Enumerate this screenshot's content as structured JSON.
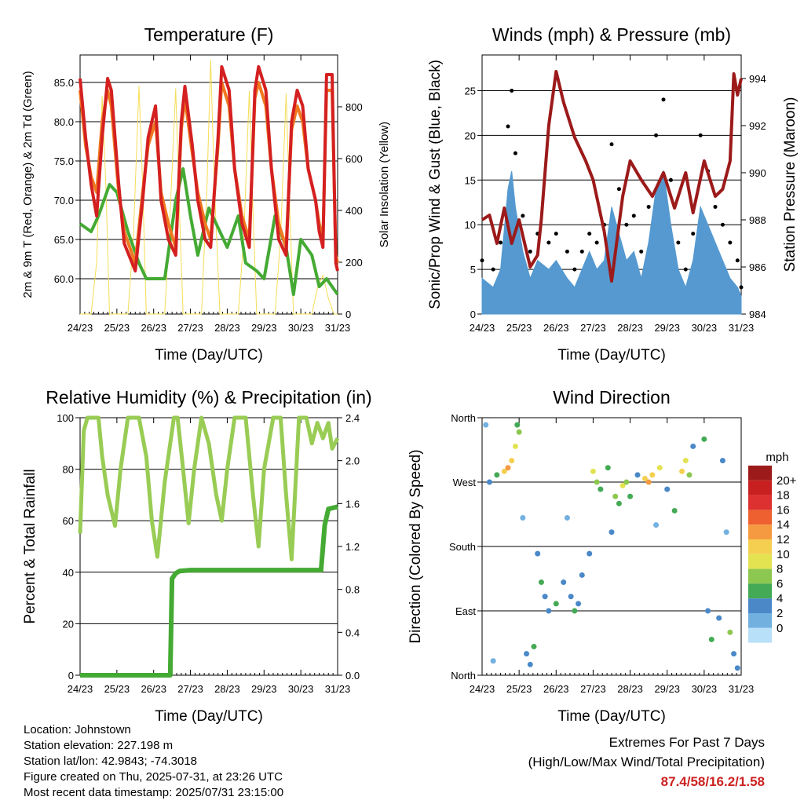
{
  "chart_data": [
    {
      "type": "line",
      "title": "Temperature (F)",
      "xlabel": "Time (Day/UTC)",
      "ylabel": "2m & 9m T (Red, Orange) & 2m Td (Green)",
      "ylabel_right": "Solar Insolation (Yellow)",
      "x_ticks": [
        "24/23",
        "25/23",
        "26/23",
        "27/23",
        "28/23",
        "29/23",
        "30/23",
        "31/23"
      ],
      "ylim": [
        55.5,
        88.5
      ],
      "yticks": [
        "60.0",
        "65.0",
        "70.0",
        "75.0",
        "80.0",
        "85.0"
      ],
      "ylim_right": [
        0,
        1000
      ],
      "yticks_right": [
        "0",
        "200",
        "400",
        "600",
        "800"
      ],
      "series": [
        {
          "color": "#d42020",
          "x": [
            0,
            0.15,
            0.3,
            0.45,
            0.6,
            0.75,
            0.85,
            1.05,
            1.2,
            1.5,
            1.7,
            1.85,
            2.05,
            2.2,
            2.4,
            2.6,
            2.75,
            2.85,
            3.05,
            3.2,
            3.4,
            3.55,
            3.75,
            3.85,
            4.05,
            4.2,
            4.4,
            4.6,
            4.75,
            4.85,
            5.05,
            5.2,
            5.4,
            5.6,
            5.75,
            5.9,
            6.05,
            6.2,
            6.4,
            6.5,
            6.6,
            6.7,
            6.85,
            6.95,
            7.0
          ],
          "y": [
            85.5,
            78,
            72,
            68,
            78,
            85.5,
            84,
            72,
            64.5,
            61,
            70,
            78,
            82,
            70,
            65,
            63,
            80,
            84.5,
            77,
            70,
            65,
            64,
            78,
            87,
            84,
            74,
            67,
            64,
            84,
            87,
            84,
            74,
            65,
            63,
            80,
            84,
            82,
            74,
            70,
            66,
            64,
            86,
            86,
            62,
            61
          ]
        },
        {
          "color": "#f07820",
          "x": [
            0,
            0.15,
            0.3,
            0.45,
            0.6,
            0.75,
            0.85,
            1.05,
            1.2,
            1.5,
            1.7,
            1.85,
            2.05,
            2.2,
            2.4,
            2.6,
            2.75,
            2.85,
            3.05,
            3.2,
            3.4,
            3.55,
            3.75,
            3.85,
            4.05,
            4.2,
            4.4,
            4.6,
            4.75,
            4.85,
            5.05,
            5.2,
            5.4,
            5.6,
            5.75,
            5.9,
            6.05,
            6.2,
            6.4,
            6.5,
            6.6,
            6.7,
            6.85,
            6.95,
            7.0
          ],
          "y": [
            84,
            77,
            73,
            71,
            80,
            84,
            82,
            71,
            66,
            62,
            71,
            77,
            80,
            71,
            67,
            64,
            79,
            83,
            76,
            71,
            67,
            65,
            77,
            85,
            82,
            74,
            68,
            65,
            83,
            85,
            82,
            74,
            67,
            64,
            79,
            82,
            80,
            74,
            70,
            67,
            65,
            84,
            84,
            63,
            62
          ]
        },
        {
          "color": "#44aa33",
          "x": [
            0,
            0.3,
            0.5,
            0.8,
            1.0,
            1.3,
            1.6,
            1.8,
            2.0,
            2.3,
            2.6,
            2.8,
            3.0,
            3.2,
            3.5,
            3.8,
            4.0,
            4.3,
            4.5,
            4.8,
            5.0,
            5.3,
            5.6,
            5.8,
            6.0,
            6.3,
            6.5,
            6.7,
            7.0
          ],
          "y": [
            67,
            66,
            68,
            72,
            71,
            66,
            62,
            60,
            60,
            60,
            70,
            74,
            68,
            63,
            69,
            66,
            64,
            68,
            62,
            61,
            60,
            68,
            64,
            58,
            65,
            63,
            59,
            60,
            58
          ]
        },
        {
          "color": "#f5dd55",
          "axis": "right",
          "x": [
            0,
            0.3,
            0.45,
            0.6,
            0.7,
            0.8,
            1.3,
            1.45,
            1.6,
            1.7,
            1.8,
            2.3,
            2.45,
            2.6,
            2.7,
            2.8,
            3.3,
            3.45,
            3.55,
            3.65,
            3.8,
            4.3,
            4.45,
            4.6,
            4.7,
            4.8,
            5.3,
            5.45,
            5.6,
            5.7,
            5.8,
            6.3,
            6.45,
            6.6,
            6.75,
            6.9,
            7.0
          ],
          "y": [
            0,
            0,
            200,
            840,
            500,
            0,
            0,
            300,
            880,
            500,
            0,
            0,
            400,
            870,
            400,
            0,
            0,
            500,
            980,
            500,
            0,
            0,
            300,
            860,
            400,
            0,
            0,
            300,
            850,
            400,
            0,
            0,
            100,
            150,
            60,
            0,
            0
          ]
        }
      ]
    },
    {
      "type": "line",
      "title": "Winds (mph) & Pressure (mb)",
      "xlabel": "Time (Day/UTC)",
      "ylabel": "Sonic/Prop Wind & Gust (Blue, Black)",
      "ylabel_right": "Station Pressure (Maroon)",
      "x_ticks": [
        "24/23",
        "25/23",
        "26/23",
        "27/23",
        "28/23",
        "29/23",
        "30/23",
        "31/23"
      ],
      "ylim": [
        0,
        29
      ],
      "yticks": [
        "0",
        "5",
        "10",
        "15",
        "20",
        "25"
      ],
      "ylim_right": [
        984,
        995
      ],
      "yticks_right": [
        "984",
        "986",
        "988",
        "990",
        "992",
        "994"
      ],
      "series": [
        {
          "color": "#5599d0",
          "x": [
            0,
            0.3,
            0.5,
            0.7,
            0.8,
            0.9,
            1.1,
            1.3,
            1.5,
            1.8,
            2.0,
            2.3,
            2.5,
            2.7,
            2.9,
            3.1,
            3.3,
            3.5,
            3.7,
            3.9,
            4.1,
            4.3,
            4.5,
            4.7,
            4.9,
            5.1,
            5.3,
            5.5,
            5.7,
            5.9,
            6.1,
            6.3,
            6.5,
            6.7,
            6.9,
            7.0
          ],
          "y": [
            4,
            3,
            5,
            14,
            16,
            12,
            7,
            4,
            6,
            5,
            6,
            4,
            3,
            5,
            7,
            5,
            6,
            12,
            9,
            6,
            7,
            4,
            8,
            14,
            16,
            10,
            5,
            3,
            6,
            12,
            10,
            8,
            6,
            4,
            3,
            2
          ]
        },
        {
          "color": "#000000",
          "x": [
            0,
            0.3,
            0.5,
            0.7,
            0.8,
            0.9,
            1.1,
            1.3,
            1.5,
            1.8,
            2.0,
            2.3,
            2.5,
            2.7,
            2.9,
            3.1,
            3.3,
            3.5,
            3.7,
            3.9,
            4.1,
            4.3,
            4.5,
            4.7,
            4.9,
            5.1,
            5.3,
            5.5,
            5.7,
            5.9,
            6.1,
            6.3,
            6.5,
            6.7,
            6.9,
            7.0
          ],
          "y": [
            6,
            5,
            8,
            21,
            25,
            18,
            11,
            7,
            9,
            8,
            9,
            7,
            5,
            7,
            9,
            8,
            10,
            19,
            14,
            10,
            11,
            7,
            12,
            20,
            24,
            15,
            8,
            5,
            9,
            20,
            16,
            12,
            10,
            8,
            6,
            3
          ]
        },
        {
          "color": "#9c1a1a",
          "axis": "right",
          "x": [
            0,
            0.2,
            0.4,
            0.6,
            0.8,
            1.0,
            1.3,
            1.5,
            1.6,
            1.8,
            2.0,
            2.2,
            2.5,
            2.8,
            3.0,
            3.3,
            3.5,
            3.8,
            4.0,
            4.3,
            4.6,
            4.9,
            5.2,
            5.5,
            5.7,
            6.0,
            6.3,
            6.5,
            6.7,
            6.8,
            6.9,
            7.0
          ],
          "y": [
            988,
            988.2,
            987,
            988.5,
            987,
            988,
            986,
            986.5,
            988,
            992,
            994.3,
            993,
            991.5,
            990.5,
            989.7,
            987.5,
            985.4,
            989,
            990.5,
            989.7,
            989,
            990,
            988.5,
            990,
            988.3,
            990.5,
            989,
            989.3,
            990.5,
            994.2,
            993.3,
            994
          ]
        }
      ]
    },
    {
      "type": "line",
      "title": "Relative Humidity (%) & Precipitation (in)",
      "xlabel": "Time (Day/UTC)",
      "ylabel": "Percent & Total Rainfall",
      "x_ticks": [
        "24/23",
        "25/23",
        "26/23",
        "27/23",
        "28/23",
        "29/23",
        "30/23",
        "31/23"
      ],
      "ylim": [
        0,
        100
      ],
      "yticks": [
        "0",
        "20",
        "40",
        "60",
        "80",
        "100"
      ],
      "ylim_right": [
        0,
        2.4
      ],
      "yticks_right": [
        "0.0",
        "0.4",
        "0.8",
        "1.2",
        "1.6",
        "2.0",
        "2.4"
      ],
      "series": [
        {
          "color": "#99cc55",
          "x": [
            0,
            0.1,
            0.2,
            0.5,
            0.6,
            0.75,
            0.95,
            1.1,
            1.3,
            1.6,
            1.8,
            1.95,
            2.1,
            2.3,
            2.55,
            2.65,
            2.8,
            2.95,
            3.1,
            3.3,
            3.5,
            3.7,
            3.85,
            4.0,
            4.2,
            4.5,
            4.7,
            4.85,
            5.0,
            5.25,
            5.45,
            5.6,
            5.75,
            5.95,
            6.15,
            6.3,
            6.45,
            6.6,
            6.75,
            6.85,
            7.0
          ],
          "y": [
            55,
            95,
            100,
            100,
            85,
            70,
            58,
            80,
            100,
            100,
            85,
            60,
            46,
            75,
            100,
            100,
            80,
            59,
            80,
            100,
            90,
            70,
            60,
            80,
            100,
            100,
            70,
            50,
            80,
            100,
            100,
            70,
            45,
            100,
            100,
            90,
            98,
            92,
            98,
            88,
            92
          ]
        },
        {
          "color": "#44aa33",
          "axis": "right",
          "x": [
            0,
            1.0,
            2.2,
            2.45,
            2.5,
            2.6,
            2.7,
            3.0,
            4.0,
            5.0,
            6.0,
            6.55,
            6.65,
            6.75,
            7.0
          ],
          "y": [
            0,
            0,
            0,
            0,
            0.9,
            0.95,
            0.97,
            0.98,
            0.98,
            0.98,
            0.98,
            0.98,
            1.4,
            1.55,
            1.57
          ]
        }
      ]
    },
    {
      "type": "scatter",
      "title": "Wind Direction",
      "xlabel": "Time (Day/UTC)",
      "ylabel": "Direction (Colored By Speed)",
      "x_ticks": [
        "24/23",
        "25/23",
        "26/23",
        "27/23",
        "28/23",
        "29/23",
        "30/23",
        "31/23"
      ],
      "y_ticks": [
        "North",
        "East",
        "South",
        "West",
        "North"
      ],
      "ylim": [
        0,
        360
      ],
      "colorbar_title": "mph",
      "colorbar_labels": [
        "20+",
        "18",
        "16",
        "14",
        "12",
        "10",
        "8",
        "6",
        "4",
        "2",
        "0"
      ],
      "colorbar_colors": [
        "#9c1a1a",
        "#c82020",
        "#dd3030",
        "#ee6030",
        "#f59a40",
        "#f5d050",
        "#e3e352",
        "#8cc850",
        "#44aa55",
        "#4a88c8",
        "#72b0e0",
        "#b8e0f8"
      ],
      "points": [
        [
          0.2,
          270,
          4
        ],
        [
          0.4,
          280,
          6
        ],
        [
          0.6,
          285,
          12
        ],
        [
          0.7,
          290,
          15
        ],
        [
          0.8,
          300,
          12
        ],
        [
          0.9,
          320,
          10
        ],
        [
          1.0,
          340,
          8
        ],
        [
          0.95,
          350,
          6
        ],
        [
          0.1,
          350,
          2
        ],
        [
          0.3,
          20,
          3
        ],
        [
          1.2,
          30,
          5
        ],
        [
          1.3,
          15,
          4
        ],
        [
          1.4,
          40,
          6
        ],
        [
          1.5,
          170,
          5
        ],
        [
          1.6,
          130,
          6
        ],
        [
          1.7,
          110,
          5
        ],
        [
          1.8,
          90,
          4
        ],
        [
          2.0,
          100,
          6
        ],
        [
          2.2,
          130,
          5
        ],
        [
          2.4,
          110,
          4
        ],
        [
          2.5,
          90,
          6
        ],
        [
          2.6,
          100,
          5
        ],
        [
          2.7,
          140,
          4
        ],
        [
          2.9,
          170,
          5
        ],
        [
          3.0,
          285,
          10
        ],
        [
          3.1,
          270,
          8
        ],
        [
          3.2,
          260,
          6
        ],
        [
          3.4,
          290,
          6
        ],
        [
          3.6,
          250,
          8
        ],
        [
          3.7,
          240,
          6
        ],
        [
          3.8,
          265,
          10
        ],
        [
          3.9,
          270,
          8
        ],
        [
          4.0,
          250,
          6
        ],
        [
          4.2,
          280,
          4
        ],
        [
          4.4,
          275,
          12
        ],
        [
          4.5,
          270,
          14
        ],
        [
          4.6,
          280,
          12
        ],
        [
          4.8,
          290,
          10
        ],
        [
          5.0,
          260,
          4
        ],
        [
          5.2,
          230,
          6
        ],
        [
          5.4,
          285,
          12
        ],
        [
          5.5,
          300,
          10
        ],
        [
          5.6,
          280,
          8
        ],
        [
          5.7,
          320,
          4
        ],
        [
          6.0,
          330,
          6
        ],
        [
          6.1,
          90,
          4
        ],
        [
          6.2,
          50,
          6
        ],
        [
          6.4,
          80,
          5
        ],
        [
          6.5,
          300,
          4
        ],
        [
          6.7,
          60,
          8
        ],
        [
          6.8,
          30,
          5
        ],
        [
          6.9,
          10,
          4
        ],
        [
          6.6,
          200,
          3
        ],
        [
          4.7,
          210,
          2
        ],
        [
          3.5,
          200,
          4
        ],
        [
          2.3,
          220,
          3
        ],
        [
          1.1,
          220,
          2
        ]
      ]
    }
  ],
  "footer": {
    "location": "Location: Johnstown",
    "elevation": "Station elevation: 227.198 m",
    "latlon": "Station lat/lon: 42.9843; -74.3018",
    "created": "Figure created on Thu, 2025-07-31, at 23:26 UTC",
    "recent": "Most recent data timestamp: 2025/07/31 23:15:00"
  },
  "extremes": {
    "title": "Extremes For Past 7 Days",
    "subtitle": "(High/Low/Max Wind/Total Precipitation)",
    "values": "87.4/58/16.2/1.58"
  }
}
